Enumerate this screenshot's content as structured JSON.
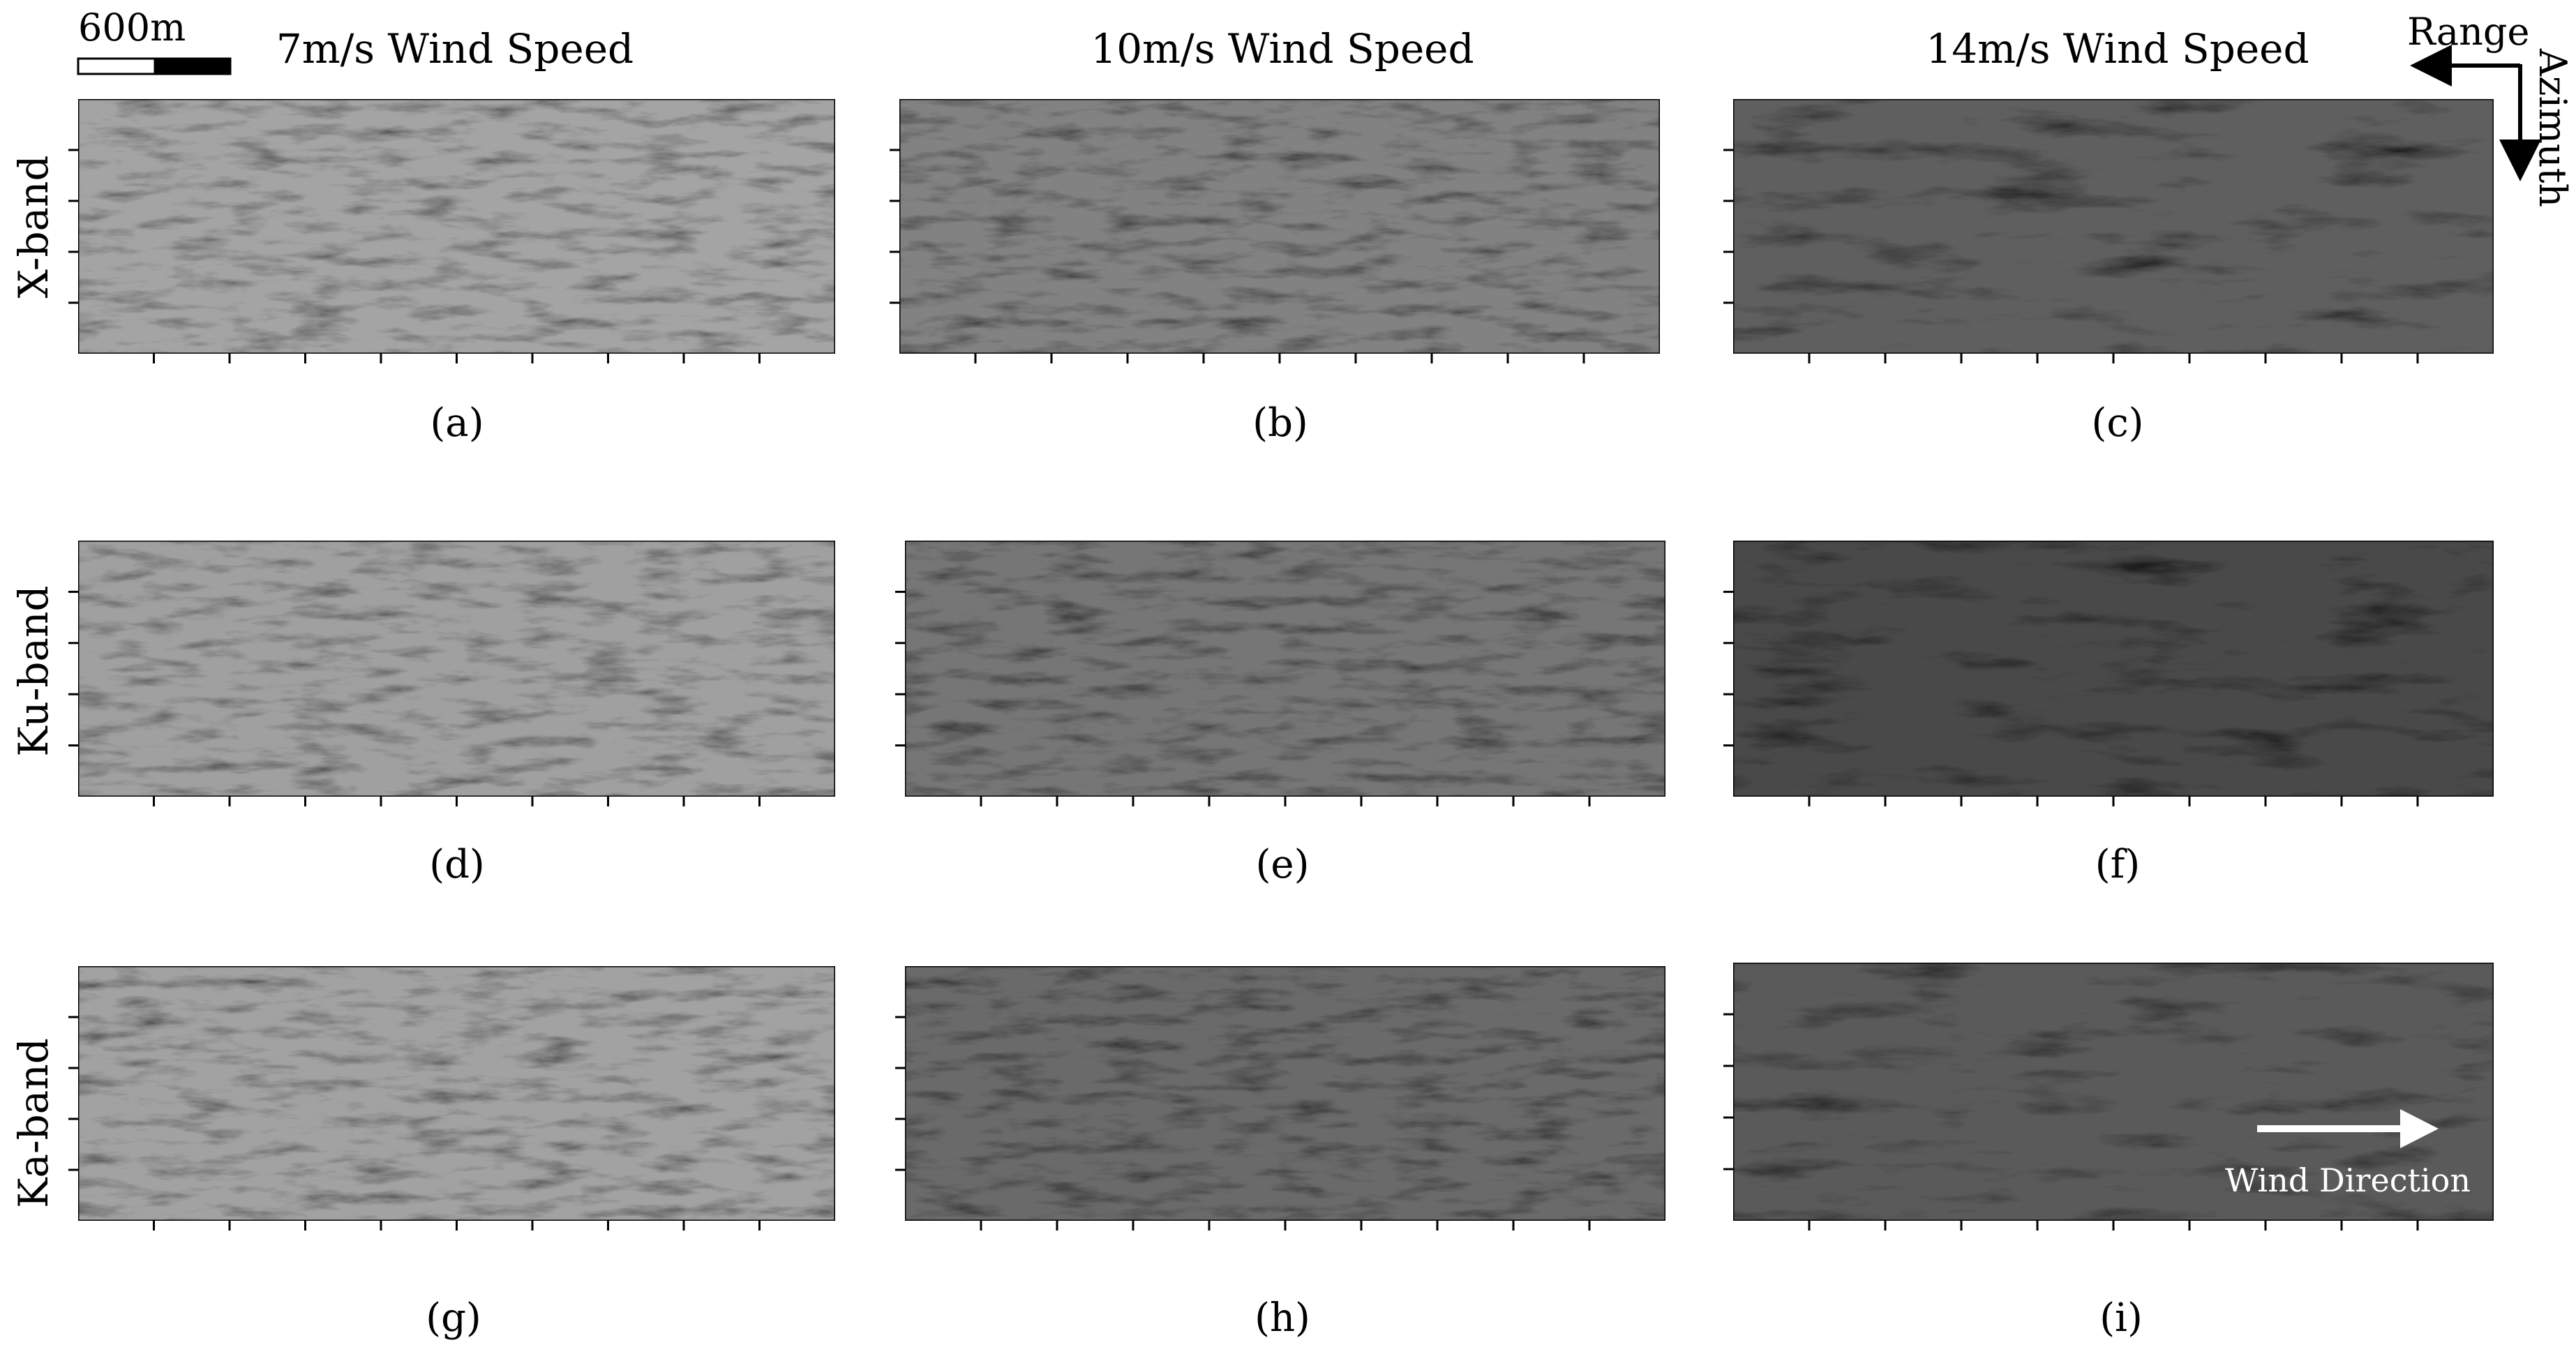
{
  "scale_bar": {
    "label": "600m"
  },
  "columns": [
    {
      "title": "7m/s Wind Speed",
      "tone": "#9c9c9c"
    },
    {
      "title": "10m/s Wind Speed",
      "tone": "#7a7a7a"
    },
    {
      "title": "14m/s Wind Speed",
      "tone": "#5c5c5c"
    }
  ],
  "rows": [
    {
      "label": "X-band",
      "captions": [
        "(a)",
        "(b)",
        "(c)"
      ],
      "tones": [
        "#a4a4a4",
        "#828282",
        "#5e5e5e"
      ]
    },
    {
      "label": "Ku-band",
      "captions": [
        "(d)",
        "(e)",
        "(f)"
      ],
      "tones": [
        "#a0a0a0",
        "#767676",
        "#4a4a4a"
      ]
    },
    {
      "label": "Ka-band",
      "captions": [
        "(g)",
        "(h)",
        "(i)"
      ],
      "tones": [
        "#a2a2a2",
        "#6a6a6a",
        "#5a5a5a"
      ]
    }
  ],
  "orientation": {
    "range_label": "Range",
    "azimuth_label": "Azimuth"
  },
  "wind": {
    "label": "Wind Direction"
  }
}
